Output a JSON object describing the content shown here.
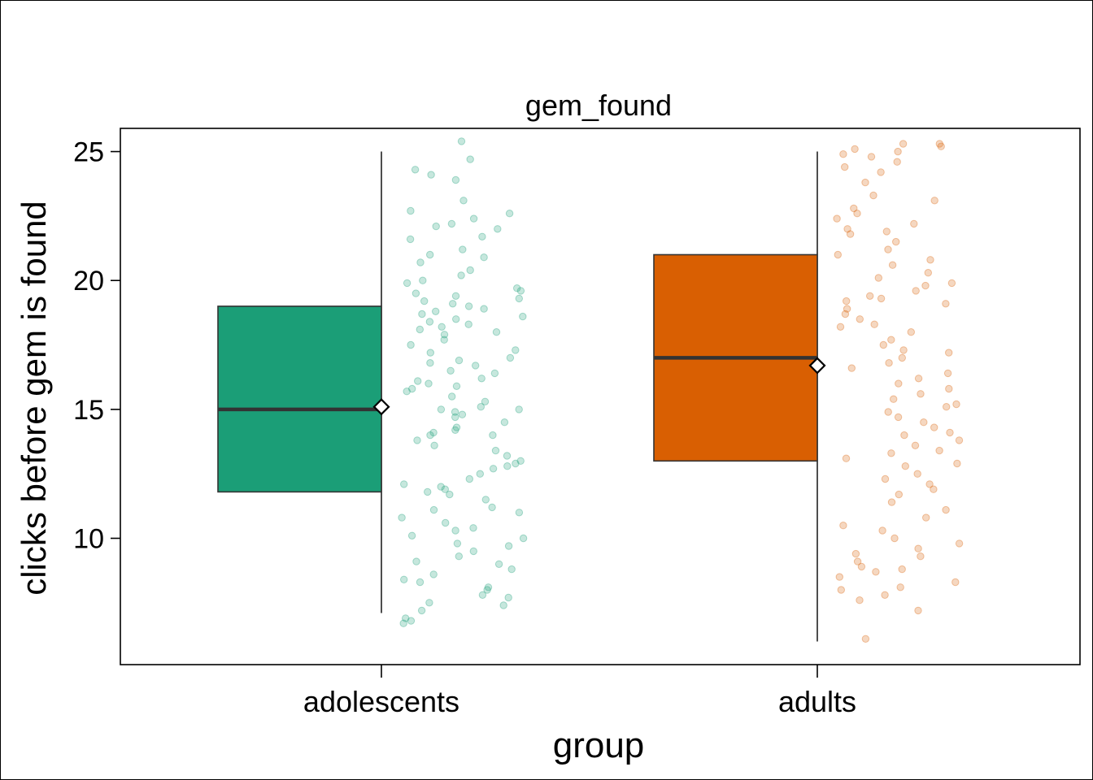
{
  "chart_data": {
    "type": "boxplot",
    "title": "gem_found",
    "xlabel": "group",
    "ylabel": "clicks before gem is found",
    "categories": [
      "adolescents",
      "adults"
    ],
    "ylim": [
      5.1,
      25.9
    ],
    "yticks": [
      10,
      15,
      20,
      25
    ],
    "grid": false,
    "series": [
      {
        "category": "adolescents",
        "color": "#1b9e77",
        "box": {
          "min": 7.1,
          "q1": 11.8,
          "median": 15.0,
          "q3": 19.0,
          "max": 25.0,
          "mean": 15.1
        },
        "points": [
          25.4,
          24.7,
          24.3,
          24.1,
          23.9,
          23.1,
          22.7,
          22.6,
          22.4,
          22.2,
          22.1,
          22.0,
          21.7,
          21.6,
          21.2,
          21.0,
          20.9,
          20.7,
          20.4,
          20.2,
          20.0,
          19.9,
          19.7,
          19.6,
          19.5,
          19.4,
          19.3,
          19.2,
          19.1,
          19.0,
          18.9,
          18.8,
          18.7,
          18.6,
          18.5,
          18.4,
          18.3,
          18.2,
          18.1,
          18.0,
          17.9,
          17.7,
          17.5,
          17.3,
          17.2,
          17.0,
          16.9,
          16.8,
          16.7,
          16.5,
          16.4,
          16.2,
          16.1,
          16.0,
          15.9,
          15.8,
          15.7,
          15.5,
          15.3,
          15.1,
          15.0,
          15.0,
          14.9,
          14.8,
          14.7,
          14.5,
          14.3,
          14.2,
          14.1,
          14.0,
          14.0,
          13.8,
          13.6,
          13.4,
          13.2,
          13.0,
          12.9,
          12.8,
          12.7,
          12.5,
          12.3,
          12.1,
          12.0,
          11.9,
          11.8,
          11.7,
          11.5,
          11.2,
          11.1,
          11.0,
          10.8,
          10.6,
          10.4,
          10.3,
          10.1,
          10.0,
          9.8,
          9.7,
          9.5,
          9.3,
          9.1,
          9.0,
          8.8,
          8.6,
          8.4,
          8.3,
          8.1,
          8.0,
          7.8,
          7.7,
          7.5,
          7.4,
          7.2,
          6.9,
          6.8,
          6.7
        ]
      },
      {
        "category": "adults",
        "color": "#d95f02",
        "box": {
          "min": 6.0,
          "q1": 13.0,
          "median": 17.0,
          "q3": 21.0,
          "max": 25.0,
          "mean": 16.7
        },
        "points": [
          25.3,
          25.3,
          25.2,
          25.1,
          25.0,
          24.9,
          24.8,
          24.6,
          24.4,
          24.2,
          23.8,
          23.3,
          23.1,
          22.8,
          22.6,
          22.4,
          22.2,
          22.0,
          21.9,
          21.8,
          21.5,
          21.2,
          21.0,
          20.8,
          20.6,
          20.3,
          20.1,
          19.9,
          19.8,
          19.6,
          19.4,
          19.3,
          19.2,
          19.1,
          18.9,
          18.7,
          18.5,
          18.3,
          18.2,
          18.0,
          17.7,
          17.5,
          17.3,
          17.2,
          17.0,
          16.8,
          16.6,
          16.4,
          16.2,
          16.0,
          15.8,
          15.6,
          15.4,
          15.2,
          15.1,
          14.9,
          14.7,
          14.5,
          14.3,
          14.1,
          14.0,
          13.8,
          13.6,
          13.4,
          13.3,
          13.1,
          12.9,
          12.8,
          12.5,
          12.3,
          12.1,
          11.9,
          11.7,
          11.4,
          11.1,
          10.8,
          10.5,
          10.3,
          10.0,
          9.8,
          9.6,
          9.4,
          9.3,
          9.1,
          8.9,
          8.8,
          8.7,
          8.5,
          8.3,
          8.1,
          8.0,
          7.8,
          7.6,
          7.2,
          6.1
        ]
      }
    ]
  }
}
